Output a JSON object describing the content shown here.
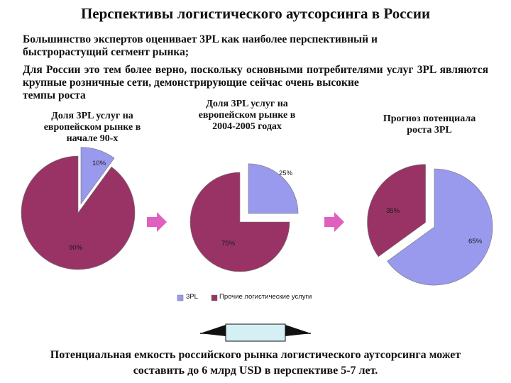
{
  "title": "Перспективы логистического аутсорсинга в России",
  "paragraphs": {
    "p1_line1": "Большинство экспертов оценивает 3PL как наиболее перспективный и",
    "p1_line2": "быстрорастущий сегмент рынка;",
    "p2_line1": "Для России это тем более верно, поскольку основными потребителями услуг 3PL",
    "p2_line2": "являются крупные розничные сети, демонстрирующие сейчас очень высокие",
    "p2_line3": "темпы роста"
  },
  "captions": {
    "chart1_l1": "Доля 3PL услуг на",
    "chart1_l2": "европейском рынке в",
    "chart1_l3": "начале 90-х",
    "chart2_l1": "Доля 3PL услуг на",
    "chart2_l2": "европейском рынке в",
    "chart2_l3": "2004-2005 годах",
    "chart3_l1": "Прогноз потенциала",
    "chart3_l2": "роста 3PL"
  },
  "legend": {
    "item_3pl": "3PL",
    "item_other": "Прочие логистические услуги"
  },
  "footer": {
    "line1": "Потенциальная емкость российского рынка логистического аутсорсинга может",
    "line2": "составить до 6 млрд USD в перспективе 5-7 лет."
  },
  "colors": {
    "three_pl": "#9999ee",
    "other": "#993366",
    "arrow": "#e060c0",
    "bottom_box": "#d4f0f4"
  },
  "chart_data": [
    {
      "type": "pie",
      "title": "Доля 3PL услуг на европейском рынке в начале 90-х",
      "labels": [
        "3PL",
        "Прочие логистические услуги"
      ],
      "values": [
        10,
        90
      ],
      "value_labels": [
        "10%",
        "90%"
      ],
      "exploded": "3PL"
    },
    {
      "type": "pie",
      "title": "Доля 3PL услуг на европейском рынке в 2004-2005 годах",
      "labels": [
        "3PL",
        "Прочие логистические услуги"
      ],
      "values": [
        25,
        75
      ],
      "value_labels": [
        "25%",
        "75%"
      ],
      "exploded": "3PL"
    },
    {
      "type": "pie",
      "title": "Прогноз потенциала роста 3PL",
      "labels": [
        "3PL",
        "Прочие логистические услуги"
      ],
      "values": [
        65,
        35
      ],
      "value_labels": [
        "65%",
        "35%"
      ],
      "exploded": "Прочие логистические услуги"
    }
  ]
}
